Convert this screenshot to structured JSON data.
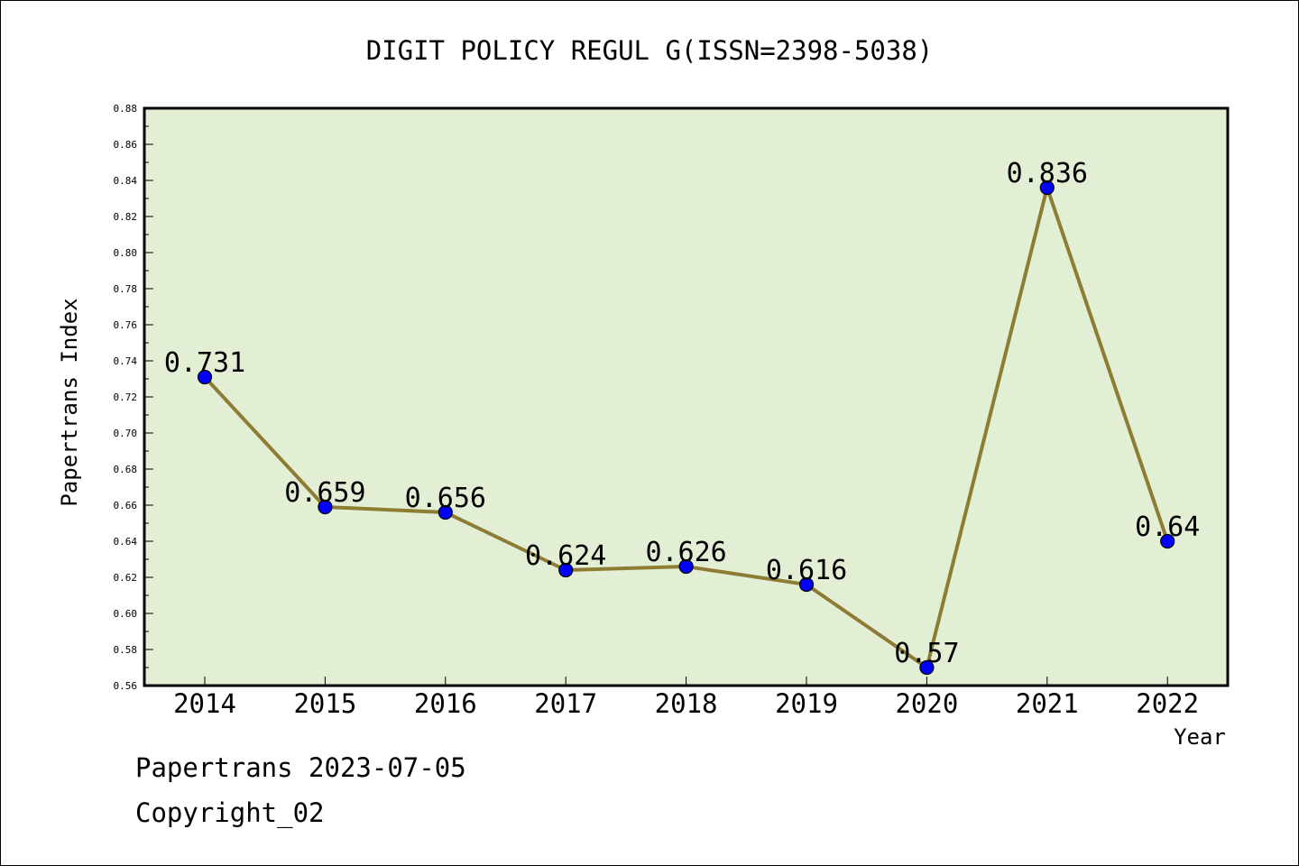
{
  "chart_data": {
    "type": "line",
    "title": "DIGIT POLICY REGUL G(ISSN=2398-5038)",
    "xlabel": "Year",
    "ylabel": "Papertrans Index",
    "categories": [
      "2014",
      "2015",
      "2016",
      "2017",
      "2018",
      "2019",
      "2020",
      "2021",
      "2022"
    ],
    "series": [
      {
        "values": [
          0.731,
          0.659,
          0.656,
          0.624,
          0.626,
          0.616,
          0.57,
          0.836,
          0.64
        ],
        "data_labels": [
          "0.731",
          "0.659",
          "0.656",
          "0.624",
          "0.626",
          "0.616",
          "0.57",
          "0.836",
          "0.64"
        ]
      }
    ],
    "ylim": [
      0.56,
      0.88
    ],
    "y_ticks": [
      "0.56",
      "0.58",
      "0.60",
      "0.62",
      "0.64",
      "0.66",
      "0.68",
      "0.70",
      "0.72",
      "0.74",
      "0.76",
      "0.78",
      "0.80",
      "0.82",
      "0.84",
      "0.86",
      "0.88"
    ],
    "grid": false,
    "legend": "none",
    "colors": {
      "plot_background": "#e2efd5",
      "line": "#8e7c34",
      "marker": "#0000ff"
    }
  },
  "footer": {
    "date_line": "Papertrans 2023-07-05",
    "copyright": "Copyright_02"
  }
}
